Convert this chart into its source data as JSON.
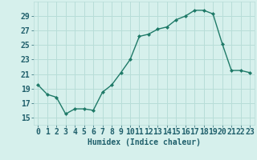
{
  "x": [
    0,
    1,
    2,
    3,
    4,
    5,
    6,
    7,
    8,
    9,
    10,
    11,
    12,
    13,
    14,
    15,
    16,
    17,
    18,
    19,
    20,
    21,
    22,
    23
  ],
  "y": [
    19.5,
    18.2,
    17.8,
    15.5,
    16.2,
    16.2,
    16.0,
    18.5,
    19.5,
    21.2,
    23.0,
    26.2,
    26.5,
    27.2,
    27.5,
    28.5,
    29.0,
    29.8,
    29.8,
    29.3,
    25.2,
    21.5,
    21.5,
    21.2
  ],
  "line_color": "#1f7a68",
  "marker_color": "#1f7a68",
  "bg_color": "#d6f0ec",
  "grid_color": "#b8ddd8",
  "text_color": "#1f5f6b",
  "xlabel": "Humidex (Indice chaleur)",
  "yticks": [
    15,
    17,
    19,
    21,
    23,
    25,
    27,
    29
  ],
  "ylim": [
    14.0,
    31.0
  ],
  "xlim": [
    -0.5,
    23.5
  ],
  "xlabel_fontsize": 7,
  "tick_fontsize": 7,
  "linewidth": 1.0,
  "markersize": 2.0
}
